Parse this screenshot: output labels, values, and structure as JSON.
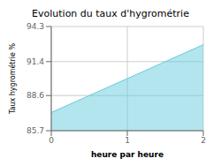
{
  "chart_data": {
    "type": "area",
    "title": "Evolution du taux d'hygrométrie",
    "xlabel": "heure par heure",
    "ylabel": "Taux hygrométrie %",
    "x": [
      0,
      2
    ],
    "values": [
      87.2,
      92.8
    ],
    "color": "#66ccdd",
    "xlim": [
      0,
      2
    ],
    "xticks": [
      0,
      1,
      2
    ],
    "ylim": [
      85.7,
      94.3
    ],
    "yticks": [
      85.7,
      88.6,
      91.4,
      94.3
    ],
    "grid": true
  }
}
